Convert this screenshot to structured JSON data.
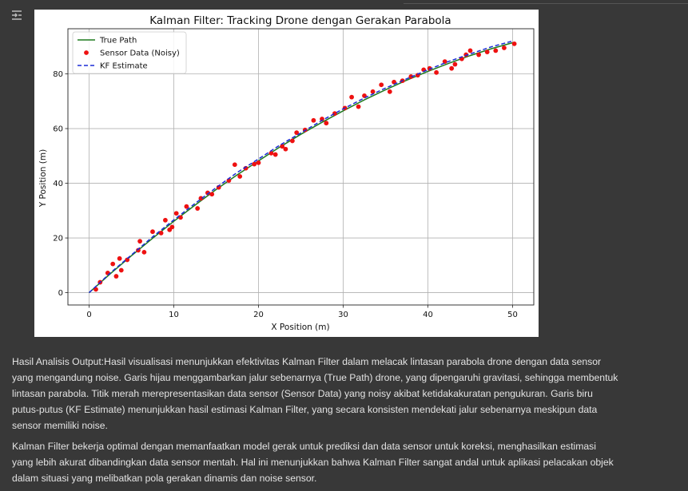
{
  "output": {
    "collapse_icon": "collapse-output-icon",
    "analysis_paragraphs": [
      "Hasil Analisis Output:Hasil visualisasi menunjukkan efektivitas Kalman Filter dalam melacak lintasan parabola drone dengan data sensor yang mengandung noise. Garis hijau menggambarkan jalur sebenarnya (True Path) drone, yang dipengaruhi gravitasi, sehingga membentuk lintasan parabola. Titik merah merepresentasikan data sensor (Sensor Data) yang noisy akibat ketidakakuratan pengukuran. Garis biru putus-putus (KF Estimate) menunjukkan hasil estimasi Kalman Filter, yang secara konsisten mendekati jalur sebenarnya meskipun data sensor memiliki noise.",
      "Kalman Filter bekerja optimal dengan memanfaatkan model gerak untuk prediksi dan data sensor untuk koreksi, menghasilkan estimasi yang lebih akurat dibandingkan data sensor mentah. Hal ini menunjukkan bahwa Kalman Filter sangat andal untuk aplikasi pelacakan objek dalam situasi yang melibatkan pola gerakan dinamis dan noise sensor."
    ]
  },
  "chart_data": {
    "type": "line",
    "title": "Kalman Filter: Tracking Drone dengan Gerakan Parabola",
    "xlabel": "X Position (m)",
    "ylabel": "Y Position (m)",
    "xlim": [
      -2.5,
      52.5
    ],
    "ylim": [
      -4.5,
      96.5
    ],
    "xticks": [
      0,
      10,
      20,
      30,
      40,
      50
    ],
    "yticks": [
      0,
      20,
      40,
      60,
      80
    ],
    "grid": true,
    "legend_position": "upper-left",
    "series": [
      {
        "name": "True Path",
        "style": "line",
        "color": "#1f7a1f",
        "x": [
          0,
          2.5,
          5,
          7.5,
          10,
          12.5,
          15,
          17.5,
          20,
          22.5,
          25,
          27.5,
          30,
          32.5,
          35,
          37.5,
          40,
          42.5,
          45,
          47.5,
          50
        ],
        "y": [
          0,
          6.9,
          13.5,
          19.9,
          26.1,
          32.0,
          37.7,
          43.1,
          48.2,
          53.2,
          57.9,
          62.3,
          66.5,
          70.5,
          74.2,
          77.7,
          80.9,
          83.9,
          86.7,
          89.2,
          91.4
        ]
      },
      {
        "name": "Sensor Data (Noisy)",
        "style": "scatter",
        "color": "#ee1111",
        "x": [
          0.8,
          1.3,
          2.2,
          2.8,
          3.2,
          3.6,
          3.8,
          4.5,
          5.8,
          6.0,
          6.5,
          7.5,
          8.5,
          9.0,
          9.5,
          9.8,
          10.3,
          10.8,
          11.5,
          12.8,
          13.2,
          14.0,
          14.5,
          15.3,
          16.5,
          17.2,
          17.8,
          18.5,
          19.5,
          20.0,
          21.5,
          22.0,
          22.8,
          23.2,
          24.0,
          24.5,
          25.5,
          26.5,
          27.5,
          28.0,
          29.0,
          30.2,
          31.0,
          31.8,
          32.5,
          33.5,
          34.5,
          35.5,
          36.0,
          37.0,
          38.0,
          38.8,
          39.5,
          40.2,
          41.0,
          42.0,
          42.8,
          43.2,
          44.0,
          44.5,
          45.0,
          46.0,
          47.0,
          48.0,
          49.0,
          50.2
        ],
        "y": [
          1.2,
          3.8,
          7.2,
          10.5,
          6.0,
          12.5,
          8.2,
          12.0,
          15.5,
          18.8,
          14.8,
          22.3,
          21.8,
          26.5,
          23.0,
          24.0,
          29.0,
          27.5,
          31.5,
          30.8,
          34.5,
          36.5,
          36.0,
          38.5,
          41.0,
          46.8,
          42.5,
          45.5,
          47.0,
          47.5,
          51.0,
          50.5,
          53.5,
          52.5,
          55.5,
          58.5,
          59.5,
          63.0,
          63.5,
          62.0,
          65.5,
          67.5,
          71.5,
          68.0,
          72.0,
          73.5,
          76.0,
          73.5,
          77.0,
          77.5,
          79.0,
          79.5,
          81.5,
          82.0,
          80.5,
          84.5,
          82.0,
          83.5,
          85.5,
          87.0,
          88.5,
          87.0,
          88.0,
          88.5,
          89.5,
          91.0
        ]
      },
      {
        "name": "KF Estimate",
        "style": "dashed",
        "color": "#1a2bd6",
        "x": [
          0,
          2.5,
          5,
          7.5,
          10,
          12.5,
          15,
          17.5,
          20,
          22.5,
          25,
          27.5,
          30,
          32.5,
          35,
          37.5,
          40,
          42.5,
          45,
          47.5,
          50
        ],
        "y": [
          0,
          7.2,
          13.8,
          20.4,
          26.6,
          32.6,
          38.4,
          44.0,
          48.9,
          53.9,
          58.4,
          63.0,
          67.2,
          71.2,
          74.8,
          78.2,
          81.5,
          84.6,
          87.3,
          89.9,
          92.0
        ]
      }
    ]
  }
}
